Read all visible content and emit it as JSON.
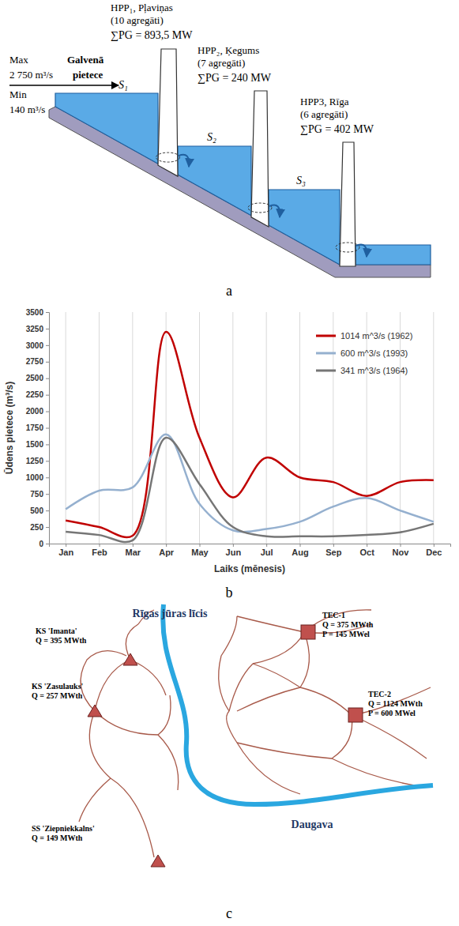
{
  "panel_labels": [
    "a",
    "b",
    "c"
  ],
  "diagram_a": {
    "inflow": {
      "max_label": "Max",
      "max_value": "2 750 m³/s",
      "title_line1": "Galvenā",
      "title_line2": "pietece",
      "min_label": "Min",
      "min_value": "140 m³/s"
    },
    "reservoirs": [
      "S₁",
      "S₂",
      "S₃"
    ],
    "plants": [
      {
        "name": "HPP₁, Pļaviņas",
        "units": "(10 agregāti)",
        "power": "∑PG = 893,5 MW"
      },
      {
        "name": "HPP₂, Ķegums",
        "units": "(7 agregāti)",
        "power": "∑PG = 240 MW"
      },
      {
        "name": "HPP3, Rīga",
        "units": "(6 agregāti)",
        "power": "∑PG = 402 MW"
      }
    ]
  },
  "chart_data": {
    "type": "line",
    "x_label": "Laiks (mēnesis)",
    "y_label": "Ūdens pietece (m³/s)",
    "categories": [
      "Jan",
      "Feb",
      "Mar",
      "Apr",
      "May",
      "Jun",
      "Jul",
      "Aug",
      "Sep",
      "Oct",
      "Nov",
      "Dec"
    ],
    "series": [
      {
        "name": "1014 m^3/s (1962)",
        "color": "#c00000",
        "values": [
          350,
          250,
          120,
          3200,
          1600,
          700,
          1300,
          1000,
          930,
          720,
          930,
          960
        ]
      },
      {
        "name": "600 m^3/s (1993)",
        "color": "#95b0cf",
        "values": [
          520,
          800,
          850,
          1650,
          600,
          200,
          220,
          330,
          560,
          690,
          500,
          330
        ]
      },
      {
        "name": "341 m^3/s (1964)",
        "color": "#767676",
        "values": [
          180,
          130,
          50,
          1600,
          900,
          250,
          110,
          110,
          110,
          130,
          170,
          300
        ]
      }
    ],
    "ylim": [
      0,
      3500
    ],
    "yticks": [
      0,
      250,
      500,
      750,
      1000,
      1250,
      1500,
      1750,
      2000,
      2250,
      2500,
      2750,
      3000,
      3250,
      3500
    ],
    "grid": true,
    "legend": "upper right"
  },
  "diagram_c": {
    "water_body": "Rīgas jūras līcis",
    "river": "Daugava",
    "boiler_stations": [
      {
        "name": "KS 'Imanta'",
        "lines": [
          "Q = 395 MWth"
        ]
      },
      {
        "name": "KS 'Zasulauks'",
        "lines": [
          "Q = 257 MWth"
        ]
      },
      {
        "name": "SS 'Ziepniekkalns'",
        "lines": [
          "Q = 149 MWth"
        ]
      }
    ],
    "chp_plants": [
      {
        "name": "TEC-1",
        "lines": [
          "Q = 375 MWth",
          "P = 145 MWel"
        ]
      },
      {
        "name": "TEC-2",
        "lines": [
          "Q = 1124 MWth",
          "P = 600 MWel"
        ]
      }
    ]
  }
}
